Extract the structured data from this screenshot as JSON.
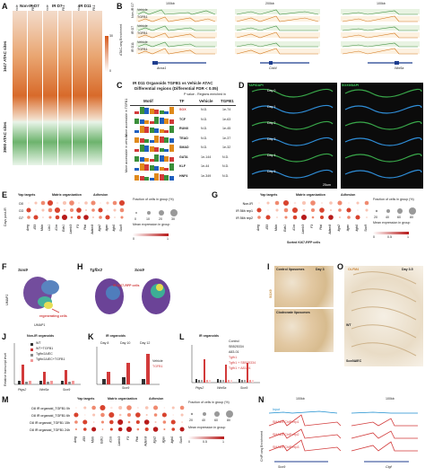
{
  "panelA": {
    "letter": "A",
    "columns": [
      "Non-IR D7",
      "IR D7",
      "IR D11"
    ],
    "subcols": [
      "Vehicle",
      "TGFB1",
      "Vehicle",
      "TGFB1",
      "Vehicle",
      "TGFB1"
    ],
    "rowlabel_top": "1647 ATAC sites",
    "rowlabel_bottom": "3900 ATAC sites",
    "scale_max": "30",
    "scale_min": "0"
  },
  "panelB": {
    "letter": "B",
    "scales": [
      "100kb",
      "200kb",
      "100kb"
    ],
    "genes": [
      "Anxa1",
      "Cd44",
      "Wnt5a"
    ],
    "tracks": [
      "Vehicle",
      "TGFB1",
      "Vehicle",
      "TGFB1",
      "Vehicle",
      "TGFB1"
    ],
    "ylabel": "ATAC-seq Enrichment",
    "sidegroups": [
      "Non-IR D7",
      "IR D7",
      "IR D11"
    ]
  },
  "panelC": {
    "letter": "C",
    "title1": "IR D11 Organoids TGFB1 vs Vehicle ATAC",
    "title2": "Differential regions (Differential FDR < 0.05)",
    "header_pvalue": "P value - Regions enriched in",
    "col_motif": "Motif",
    "col_tf": "TF",
    "col_vehicle": "Vehicle",
    "col_tgfb1": "TGFB1",
    "side_top": "More accessible in TGFB1",
    "side_bottom": "More accessible in vehicle",
    "rows": [
      {
        "tf": "SOX",
        "vehicle": "N.D.",
        "tgfb1": "1e-74"
      },
      {
        "tf": "TCF",
        "vehicle": "N.D.",
        "tgfb1": "1e-63"
      },
      {
        "tf": "RUNX",
        "vehicle": "N.D.",
        "tgfb1": "1e-45"
      },
      {
        "tf": "TEAD",
        "vehicle": "N.D.",
        "tgfb1": "1e-37"
      },
      {
        "tf": "SMAD",
        "vehicle": "N.D.",
        "tgfb1": "1e-32"
      },
      {
        "tf": "GATA",
        "vehicle": "1e-144",
        "tgfb1": "N.D."
      },
      {
        "tf": "KLF",
        "vehicle": "1e-44",
        "tgfb1": "N.D."
      },
      {
        "tf": "HNF4",
        "vehicle": "1e-349",
        "tgfb1": "N.D."
      }
    ]
  },
  "panelD": {
    "letter": "D",
    "stains": [
      "YAP/DAPI",
      "SOX9/DAPI"
    ],
    "days": [
      "Day 0",
      "Day 1",
      "Day 2",
      "Day 3",
      "Day 4",
      "Day 5"
    ],
    "scale": "25um"
  },
  "panelE": {
    "letter": "E",
    "groups": [
      "Yap targets",
      "Matrix organization",
      "Adhesion"
    ],
    "rows": [
      "D0",
      "D3",
      "D7"
    ],
    "ylabel": "Days post-IR",
    "genes": [
      "Areg",
      "Il33",
      "Msln",
      "Ltb1",
      "Il1rn",
      "Edn1",
      "Lamb3",
      "F3",
      "Plat",
      "Adam8",
      "Itga2",
      "Itgav",
      "Itgb6",
      "Sox9"
    ],
    "legend_title": "Fraction of cells in group (%)",
    "legend_ticks": [
      "0",
      "10",
      "20",
      "30"
    ],
    "color_title": "Mean expression in group",
    "color_ticks": [
      "0",
      "1"
    ]
  },
  "panelF": {
    "letter": "F",
    "gene": "Sox9",
    "label": "regenerating cells",
    "axis_x": "UMAP1",
    "axis_y": "UMAP2"
  },
  "panelG": {
    "letter": "G",
    "groups": [
      "Yap targets",
      "Matrix organization",
      "Adhesion"
    ],
    "rows": [
      "Non-IR",
      "IR 56h rep1",
      "IR 56h rep2"
    ],
    "genes": [
      "Areg",
      "Il33",
      "Msln",
      "Edn1",
      "Il1rn",
      "Lamb3",
      "F3",
      "Plat",
      "Adam8",
      "Itga2",
      "Itgav",
      "Itgb6",
      "Sox9"
    ],
    "subtitle": "Sorted Ki67-RFP cells",
    "legend_title": "Fraction of cells in group (%)",
    "legend_ticks": [
      "20",
      "40",
      "60",
      "80"
    ],
    "color_title": "Mean expression in group",
    "color_ticks": [
      "0",
      "0.5",
      "1"
    ]
  },
  "panelH": {
    "letter": "H",
    "gene1": "Tgfbr2",
    "gene2": "Sox9",
    "label": "IR Ki67-RFP cells"
  },
  "panelI": {
    "letter": "I",
    "label1": "Control liposomes",
    "label2": "Clodronate liposomes",
    "day": "Day 3",
    "stain": "SOX9"
  },
  "panelO": {
    "letter": "O",
    "stain": "OLFM4",
    "day": "Day 3.5",
    "label1": "WT",
    "label2": "Sox9ΔIEC"
  },
  "panelJ": {
    "letter": "J",
    "title": "Non-IR organoids",
    "legend": [
      "WT",
      "WT+TGFB1",
      "Tgfbr2ΔIEC",
      "Tgfbr2ΔIEC+TGFB1"
    ],
    "genes": [
      "Ptgs2",
      "Wnt5a",
      "Sox9"
    ],
    "ylabel": "Relative transcript level"
  },
  "panelK": {
    "letter": "K",
    "title": "IR organoids",
    "days": [
      "Day 8",
      "Day 10",
      "Day 12"
    ],
    "legend": [
      "Vehicle",
      "TGFB1"
    ],
    "gene": "Sox9",
    "ylabel": "Relative transcript level"
  },
  "panelL": {
    "letter": "L",
    "title": "IR organoids",
    "legend": [
      "Control",
      "SB525334",
      "A83-01",
      "Tgfb1",
      "Tgfb1 + SB525334",
      "Tgfb1 + A83-01"
    ],
    "genes": [
      "Ptgs2",
      "Wnt5a",
      "Sox9"
    ],
    "ylabel": "Relative transcript level"
  },
  "panelM": {
    "letter": "M",
    "groups": [
      "Yap targets",
      "Matrix organization",
      "Adhesion"
    ],
    "rows": [
      "D8 IR organoid_TGFB1 0h",
      "D8 IR organoid_TGFB1 6h",
      "D8 IR organoid_TGFB1 15h",
      "D8 IR organoid_TGFB1 24h"
    ],
    "genes": [
      "Areg",
      "Il33",
      "Msln",
      "Edn1",
      "Il1rn",
      "Lamb3",
      "F3",
      "Plat",
      "Adam8",
      "Itga2",
      "Itgav",
      "Itgb6",
      "Sox9"
    ],
    "legend_title": "Fraction of cells in group (%)",
    "legend_ticks": [
      "20",
      "40",
      "60",
      "80"
    ],
    "color_title": "Mean expression in group",
    "color_ticks": [
      "0",
      "0.5",
      "1"
    ]
  },
  "panelN": {
    "letter": "N",
    "scales": [
      "100kb",
      "100kb"
    ],
    "tracks": [
      "Input",
      "SMAD4 ChIP rep1",
      "SMAD4 ChIP rep2",
      "SMAD4 ChIP rep3"
    ],
    "genes": [
      "Sox9",
      "Ctgf"
    ],
    "ylabel": "ChIP-seq Enrichment"
  }
}
